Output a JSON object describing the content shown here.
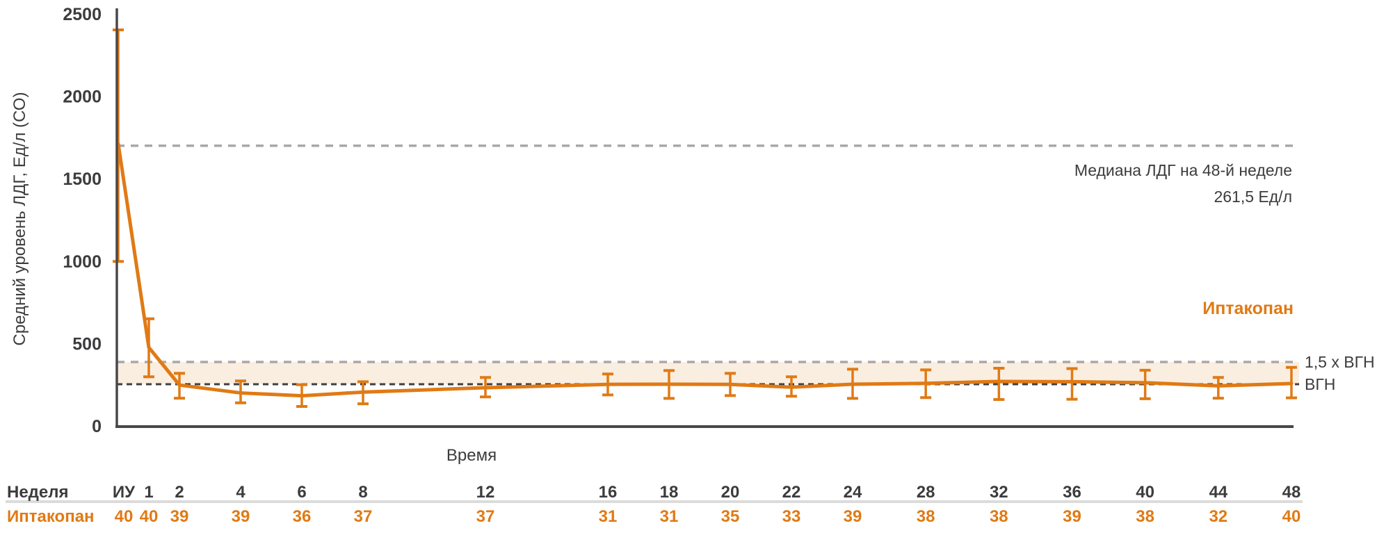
{
  "colors": {
    "orange": "#E07A15",
    "dark_text": "#3C3C3E",
    "gray_dashed": "#A8A8A8",
    "black_dashed": "#3F3F3F",
    "band_fill": "#FAEEE0",
    "axis": "#48484A",
    "table_separator": "#DBDBDB"
  },
  "y_axis": {
    "title": "Средний уровень ЛДГ, Ед/л (СО)",
    "ticks": [
      0,
      500,
      1000,
      1500,
      2000,
      2500
    ]
  },
  "x_axis": {
    "title": "Время"
  },
  "reference_lines": {
    "median_week48": {
      "value": 1700,
      "label_line1": "Медиана ЛДГ на 48-й неделе",
      "label_line2": "261,5 Ед/л"
    },
    "uln_15x": {
      "value": 388,
      "label": "1,5 x ВГН"
    },
    "uln": {
      "value": 253,
      "label": "ВГН"
    }
  },
  "legend": {
    "series_label": "Иптакопан"
  },
  "table": {
    "week_row_label": "Неделя",
    "series_row_label": "Иптакопан"
  },
  "chart_data": {
    "type": "line",
    "series_name": "Иптакопан",
    "x_tick_labels": [
      "ИУ",
      "1",
      "2",
      "4",
      "6",
      "8",
      "12",
      "16",
      "18",
      "20",
      "22",
      "24",
      "28",
      "32",
      "36",
      "40",
      "44",
      "48"
    ],
    "weeks": [
      0,
      1,
      2,
      4,
      6,
      8,
      12,
      16,
      18,
      20,
      22,
      24,
      28,
      32,
      36,
      40,
      44,
      48
    ],
    "mean_ldh": [
      1712,
      476,
      248,
      200,
      183,
      205,
      232,
      252,
      253,
      252,
      235,
      253,
      258,
      270,
      268,
      262,
      243,
      257
    ],
    "err_low": [
      998,
      298,
      168,
      140,
      118,
      134,
      176,
      188,
      167,
      184,
      180,
      167,
      172,
      160,
      162,
      165,
      168,
      170
    ],
    "err_high": [
      2403,
      650,
      319,
      273,
      250,
      268,
      294,
      315,
      336,
      319,
      298,
      344,
      340,
      350,
      348,
      338,
      294,
      355
    ],
    "n_patients": [
      40,
      40,
      39,
      39,
      36,
      37,
      37,
      31,
      31,
      35,
      33,
      39,
      38,
      38,
      39,
      38,
      32,
      40
    ],
    "ylim": [
      0,
      2500
    ],
    "grid": false,
    "legend_position": "right"
  }
}
